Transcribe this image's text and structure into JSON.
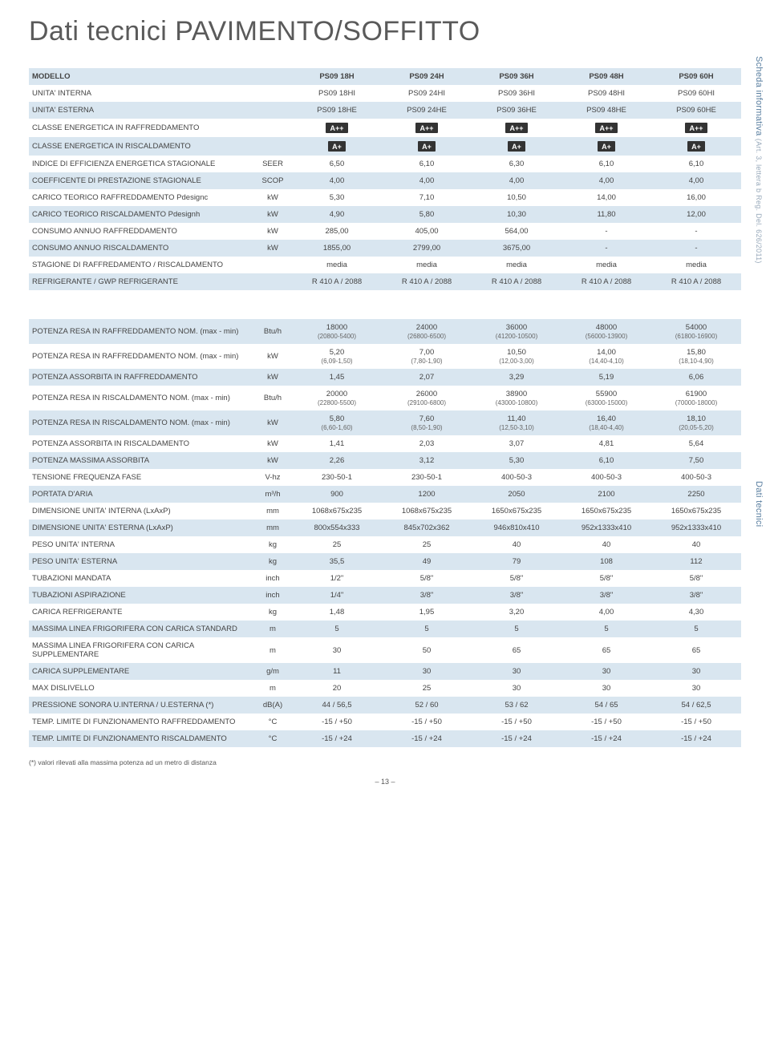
{
  "title": "Dati tecnici PAVIMENTO/SOFFITTO",
  "side_label1": "Scheda informativa",
  "side_label1_dim": "(Art. 3, lettera b Reg. Del. 626/2011)",
  "side_label2": "Dati tecnici",
  "footnote": "(*) valori rilevati alla massima potenza ad un metro di distanza",
  "pagenum": "– 13 –",
  "cols": [
    "PS09 18H",
    "PS09 24H",
    "PS09 36H",
    "PS09 48H",
    "PS09 60H"
  ],
  "t1": [
    {
      "label": "MODELLO",
      "unit": "",
      "v": [
        "PS09 18H",
        "PS09 24H",
        "PS09 36H",
        "PS09 48H",
        "PS09 60H"
      ],
      "hdr": true,
      "alt": true
    },
    {
      "label": "UNITA' INTERNA",
      "unit": "",
      "v": [
        "PS09 18HI",
        "PS09 24HI",
        "PS09 36HI",
        "PS09 48HI",
        "PS09 60HI"
      ]
    },
    {
      "label": "UNITA' ESTERNA",
      "unit": "",
      "v": [
        "PS09 18HE",
        "PS09 24HE",
        "PS09 36HE",
        "PS09 48HE",
        "PS09 60HE"
      ],
      "alt": true
    },
    {
      "label": "CLASSE ENERGETICA IN RAFFREDDAMENTO",
      "unit": "",
      "v": [
        "A++",
        "A++",
        "A++",
        "A++",
        "A++"
      ],
      "badge": true
    },
    {
      "label": "CLASSE ENERGETICA IN RISCALDAMENTO",
      "unit": "",
      "v": [
        "A+",
        "A+",
        "A+",
        "A+",
        "A+"
      ],
      "badge": true,
      "alt": true
    },
    {
      "label": "INDICE DI EFFICIENZA ENERGETICA STAGIONALE",
      "unit": "SEER",
      "v": [
        "6,50",
        "6,10",
        "6,30",
        "6,10",
        "6,10"
      ]
    },
    {
      "label": "COEFFICENTE DI PRESTAZIONE STAGIONALE",
      "unit": "SCOP",
      "v": [
        "4,00",
        "4,00",
        "4,00",
        "4,00",
        "4,00"
      ],
      "alt": true
    },
    {
      "label": "CARICO TEORICO RAFFREDDAMENTO Pdesignc",
      "unit": "kW",
      "v": [
        "5,30",
        "7,10",
        "10,50",
        "14,00",
        "16,00"
      ]
    },
    {
      "label": "CARICO TEORICO RISCALDAMENTO Pdesignh",
      "unit": "kW",
      "v": [
        "4,90",
        "5,80",
        "10,30",
        "11,80",
        "12,00"
      ],
      "alt": true
    },
    {
      "label": "CONSUMO ANNUO RAFFREDDAMENTO",
      "unit": "kW",
      "v": [
        "285,00",
        "405,00",
        "564,00",
        "-",
        "-"
      ]
    },
    {
      "label": "CONSUMO ANNUO RISCALDAMENTO",
      "unit": "kW",
      "v": [
        "1855,00",
        "2799,00",
        "3675,00",
        "-",
        "-"
      ],
      "alt": true
    },
    {
      "label": "STAGIONE DI RAFFREDAMENTO / RISCALDAMENTO",
      "unit": "",
      "v": [
        "media",
        "media",
        "media",
        "media",
        "media"
      ]
    },
    {
      "label": "REFRIGERANTE / GWP REFRIGERANTE",
      "unit": "",
      "v": [
        "R 410 A / 2088",
        "R 410 A / 2088",
        "R 410 A / 2088",
        "R 410 A / 2088",
        "R 410 A / 2088"
      ],
      "alt": true
    }
  ],
  "t2": [
    {
      "label": "POTENZA RESA IN RAFFREDDAMENTO NOM. (max - min)",
      "unit": "Btu/h",
      "v": [
        "18000",
        "24000",
        "36000",
        "48000",
        "54000"
      ],
      "sub": [
        "(20800-5400)",
        "(26800-6500)",
        "(41200-10500)",
        "(56000-13900)",
        "(61800-16900)"
      ],
      "alt": true
    },
    {
      "label": "POTENZA RESA IN RAFFREDDAMENTO NOM. (max - min)",
      "unit": "kW",
      "v": [
        "5,20",
        "7,00",
        "10,50",
        "14,00",
        "15,80"
      ],
      "sub": [
        "(6,09-1,50)",
        "(7,80-1,90)",
        "(12,00-3,00)",
        "(14,40-4,10)",
        "(18,10-4,90)"
      ]
    },
    {
      "label": "POTENZA ASSORBITA IN RAFFREDDAMENTO",
      "unit": "kW",
      "v": [
        "1,45",
        "2,07",
        "3,29",
        "5,19",
        "6,06"
      ],
      "alt": true
    },
    {
      "label": "POTENZA RESA IN RISCALDAMENTO NOM. (max - min)",
      "unit": "Btu/h",
      "v": [
        "20000",
        "26000",
        "38900",
        "55900",
        "61900"
      ],
      "sub": [
        "(22800-5500)",
        "(29100-6800)",
        "(43000-10800)",
        "(63000-15000)",
        "(70000-18000)"
      ]
    },
    {
      "label": "POTENZA RESA IN RISCALDAMENTO NOM. (max - min)",
      "unit": "kW",
      "v": [
        "5,80",
        "7,60",
        "11,40",
        "16,40",
        "18,10"
      ],
      "sub": [
        "(6,60-1,60)",
        "(8,50-1,90)",
        "(12,50-3,10)",
        "(18,40-4,40)",
        "(20,05-5,20)"
      ],
      "alt": true
    },
    {
      "label": "POTENZA ASSORBITA IN RISCALDAMENTO",
      "unit": "kW",
      "v": [
        "1,41",
        "2,03",
        "3,07",
        "4,81",
        "5,64"
      ]
    },
    {
      "label": "POTENZA MASSIMA ASSORBITA",
      "unit": "kW",
      "v": [
        "2,26",
        "3,12",
        "5,30",
        "6,10",
        "7,50"
      ],
      "alt": true
    },
    {
      "label": "TENSIONE FREQUENZA FASE",
      "unit": "V-hz",
      "v": [
        "230-50-1",
        "230-50-1",
        "400-50-3",
        "400-50-3",
        "400-50-3"
      ]
    },
    {
      "label": "PORTATA D'ARIA",
      "unit": "m³/h",
      "v": [
        "900",
        "1200",
        "2050",
        "2100",
        "2250"
      ],
      "alt": true
    },
    {
      "label": "DIMENSIONE UNITA' INTERNA (LxAxP)",
      "unit": "mm",
      "v": [
        "1068x675x235",
        "1068x675x235",
        "1650x675x235",
        "1650x675x235",
        "1650x675x235"
      ]
    },
    {
      "label": "DIMENSIONE UNITA' ESTERNA (LxAxP)",
      "unit": "mm",
      "v": [
        "800x554x333",
        "845x702x362",
        "946x810x410",
        "952x1333x410",
        "952x1333x410"
      ],
      "alt": true
    },
    {
      "label": "PESO UNITA' INTERNA",
      "unit": "kg",
      "v": [
        "25",
        "25",
        "40",
        "40",
        "40"
      ]
    },
    {
      "label": "PESO UNITA' ESTERNA",
      "unit": "kg",
      "v": [
        "35,5",
        "49",
        "79",
        "108",
        "112"
      ],
      "alt": true
    },
    {
      "label": "TUBAZIONI MANDATA",
      "unit": "inch",
      "v": [
        "1/2\"",
        "5/8\"",
        "5/8\"",
        "5/8\"",
        "5/8\""
      ]
    },
    {
      "label": "TUBAZIONI ASPIRAZIONE",
      "unit": "inch",
      "v": [
        "1/4\"",
        "3/8\"",
        "3/8\"",
        "3/8\"",
        "3/8\""
      ],
      "alt": true
    },
    {
      "label": "CARICA REFRIGERANTE",
      "unit": "kg",
      "v": [
        "1,48",
        "1,95",
        "3,20",
        "4,00",
        "4,30"
      ]
    },
    {
      "label": "MASSIMA LINEA FRIGORIFERA CON CARICA STANDARD",
      "unit": "m",
      "v": [
        "5",
        "5",
        "5",
        "5",
        "5"
      ],
      "alt": true
    },
    {
      "label": "MASSIMA LINEA FRIGORIFERA CON CARICA SUPPLEMENTARE",
      "unit": "m",
      "v": [
        "30",
        "50",
        "65",
        "65",
        "65"
      ]
    },
    {
      "label": "CARICA SUPPLEMENTARE",
      "unit": "g/m",
      "v": [
        "11",
        "30",
        "30",
        "30",
        "30"
      ],
      "alt": true
    },
    {
      "label": "MAX DISLIVELLO",
      "unit": "m",
      "v": [
        "20",
        "25",
        "30",
        "30",
        "30"
      ]
    },
    {
      "label": "PRESSIONE SONORA U.INTERNA / U.ESTERNA (*)",
      "unit": "dB(A)",
      "v": [
        "44 / 56,5",
        "52 / 60",
        "53 / 62",
        "54 / 65",
        "54 / 62,5"
      ],
      "alt": true
    },
    {
      "label": "TEMP. LIMITE DI FUNZIONAMENTO RAFFREDDAMENTO",
      "unit": "°C",
      "v": [
        "-15 / +50",
        "-15 / +50",
        "-15 / +50",
        "-15 / +50",
        "-15 / +50"
      ]
    },
    {
      "label": "TEMP. LIMITE DI FUNZIONAMENTO RISCALDAMENTO",
      "unit": "°C",
      "v": [
        "-15 / +24",
        "-15 / +24",
        "-15 / +24",
        "-15 / +24",
        "-15 / +24"
      ],
      "alt": true
    }
  ]
}
